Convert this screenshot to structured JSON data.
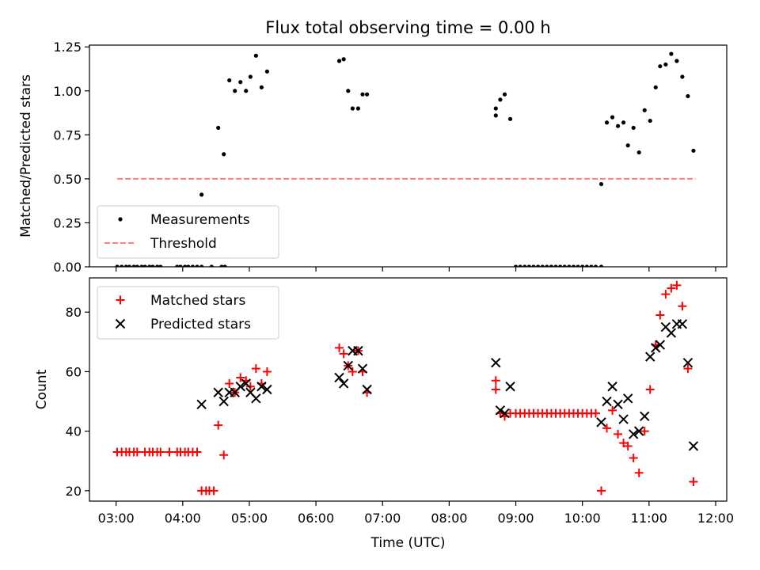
{
  "colors": {
    "measurement": "#000000",
    "threshold": "#ff7f7f",
    "matched": "#ff0000",
    "predicted": "#000000",
    "axes": "#000000",
    "legend_border": "#cccccc"
  },
  "chart_data": [
    {
      "type": "scatter",
      "title": "Flux total observing time = 0.00 h",
      "xlabel": "",
      "ylabel": "Matched/Predicted stars",
      "xlim": [
        "02:36",
        "12:10"
      ],
      "ylim": [
        0,
        1.26
      ],
      "yticks": [
        "0.00",
        "0.25",
        "0.50",
        "0.75",
        "1.00",
        "1.25"
      ],
      "ytick_values": [
        0,
        0.25,
        0.5,
        0.75,
        1.0,
        1.25
      ],
      "legend_position": "lower-left",
      "series": [
        {
          "name": "Measurements",
          "marker": "dot",
          "points": [
            [
              "03:01",
              0
            ],
            [
              "03:05",
              0
            ],
            [
              "03:09",
              0
            ],
            [
              "03:12",
              0
            ],
            [
              "03:16",
              0
            ],
            [
              "03:19",
              0
            ],
            [
              "03:23",
              0
            ],
            [
              "03:26",
              0
            ],
            [
              "03:30",
              0
            ],
            [
              "03:33",
              0
            ],
            [
              "03:37",
              0
            ],
            [
              "03:40",
              0
            ],
            [
              "03:55",
              0
            ],
            [
              "03:58",
              0
            ],
            [
              "04:02",
              0
            ],
            [
              "04:05",
              0
            ],
            [
              "04:09",
              0
            ],
            [
              "04:13",
              0
            ],
            [
              "04:17",
              0
            ],
            [
              "04:26",
              0
            ],
            [
              "04:35",
              0
            ],
            [
              "04:38",
              0
            ],
            [
              "04:17",
              0.41
            ],
            [
              "04:32",
              0.79
            ],
            [
              "04:37",
              0.64
            ],
            [
              "04:42",
              1.06
            ],
            [
              "04:47",
              1.0
            ],
            [
              "04:52",
              1.05
            ],
            [
              "04:57",
              1.0
            ],
            [
              "05:01",
              1.08
            ],
            [
              "05:06",
              1.2
            ],
            [
              "05:11",
              1.02
            ],
            [
              "05:16",
              1.11
            ],
            [
              "06:21",
              1.17
            ],
            [
              "06:25",
              1.18
            ],
            [
              "06:29",
              1.0
            ],
            [
              "06:33",
              0.9
            ],
            [
              "06:38",
              0.9
            ],
            [
              "06:42",
              0.98
            ],
            [
              "06:46",
              0.98
            ],
            [
              "08:42",
              0.9
            ],
            [
              "08:46",
              0.95
            ],
            [
              "08:50",
              0.98
            ],
            [
              "08:42",
              0.86
            ],
            [
              "08:55",
              0.84
            ],
            [
              "09:00",
              0
            ],
            [
              "09:04",
              0
            ],
            [
              "09:08",
              0
            ],
            [
              "09:12",
              0
            ],
            [
              "09:16",
              0
            ],
            [
              "09:20",
              0
            ],
            [
              "09:24",
              0
            ],
            [
              "09:28",
              0
            ],
            [
              "09:32",
              0
            ],
            [
              "09:36",
              0
            ],
            [
              "09:40",
              0
            ],
            [
              "09:44",
              0
            ],
            [
              "09:48",
              0
            ],
            [
              "09:52",
              0
            ],
            [
              "09:56",
              0
            ],
            [
              "10:00",
              0
            ],
            [
              "10:04",
              0
            ],
            [
              "10:08",
              0
            ],
            [
              "10:12",
              0
            ],
            [
              "10:17",
              0
            ],
            [
              "10:17",
              0.47
            ],
            [
              "10:22",
              0.82
            ],
            [
              "10:27",
              0.85
            ],
            [
              "10:32",
              0.8
            ],
            [
              "10:37",
              0.82
            ],
            [
              "10:41",
              0.69
            ],
            [
              "10:46",
              0.79
            ],
            [
              "10:51",
              0.65
            ],
            [
              "10:56",
              0.89
            ],
            [
              "11:01",
              0.83
            ],
            [
              "11:06",
              1.02
            ],
            [
              "11:10",
              1.14
            ],
            [
              "11:15",
              1.15
            ],
            [
              "11:20",
              1.21
            ],
            [
              "11:25",
              1.17
            ],
            [
              "11:30",
              1.08
            ],
            [
              "11:35",
              0.97
            ],
            [
              "11:40",
              0.66
            ]
          ]
        },
        {
          "name": "Threshold",
          "style": "dashed",
          "points": [
            [
              "03:01",
              0.5
            ],
            [
              "11:42",
              0.5
            ]
          ]
        }
      ]
    },
    {
      "type": "scatter",
      "title": "",
      "xlabel": "Time (UTC)",
      "ylabel": "Count",
      "xlim": [
        "02:36",
        "12:10"
      ],
      "ylim": [
        16.5,
        91.5
      ],
      "xticks": [
        "03:00",
        "04:00",
        "05:00",
        "06:00",
        "07:00",
        "08:00",
        "09:00",
        "10:00",
        "11:00",
        "12:00"
      ],
      "yticks": [
        "20",
        "40",
        "60",
        "80"
      ],
      "ytick_values": [
        20,
        40,
        60,
        80
      ],
      "legend_position": "upper-left",
      "series": [
        {
          "name": "Matched stars",
          "marker": "plus",
          "points": [
            [
              "03:01",
              33
            ],
            [
              "03:05",
              33
            ],
            [
              "03:09",
              33
            ],
            [
              "03:12",
              33
            ],
            [
              "03:16",
              33
            ],
            [
              "03:19",
              33
            ],
            [
              "03:26",
              33
            ],
            [
              "03:30",
              33
            ],
            [
              "03:33",
              33
            ],
            [
              "03:37",
              33
            ],
            [
              "03:40",
              33
            ],
            [
              "03:48",
              33
            ],
            [
              "03:55",
              33
            ],
            [
              "03:58",
              33
            ],
            [
              "04:02",
              33
            ],
            [
              "04:05",
              33
            ],
            [
              "04:09",
              33
            ],
            [
              "04:13",
              33
            ],
            [
              "04:17",
              20
            ],
            [
              "04:21",
              20
            ],
            [
              "04:24",
              20
            ],
            [
              "04:28",
              20
            ],
            [
              "04:32",
              42
            ],
            [
              "04:37",
              32
            ],
            [
              "04:42",
              56
            ],
            [
              "04:47",
              53
            ],
            [
              "04:52",
              58
            ],
            [
              "04:57",
              57
            ],
            [
              "05:01",
              55
            ],
            [
              "05:06",
              61
            ],
            [
              "05:11",
              56
            ],
            [
              "05:16",
              60
            ],
            [
              "06:21",
              68
            ],
            [
              "06:25",
              66
            ],
            [
              "06:29",
              62
            ],
            [
              "06:33",
              60
            ],
            [
              "06:38",
              67
            ],
            [
              "06:42",
              60
            ],
            [
              "06:46",
              53
            ],
            [
              "08:42",
              57
            ],
            [
              "08:42",
              54
            ],
            [
              "08:46",
              46
            ],
            [
              "08:50",
              45
            ],
            [
              "08:55",
              46
            ],
            [
              "09:00",
              46
            ],
            [
              "09:04",
              46
            ],
            [
              "09:08",
              46
            ],
            [
              "09:12",
              46
            ],
            [
              "09:16",
              46
            ],
            [
              "09:20",
              46
            ],
            [
              "09:24",
              46
            ],
            [
              "09:28",
              46
            ],
            [
              "09:32",
              46
            ],
            [
              "09:36",
              46
            ],
            [
              "09:40",
              46
            ],
            [
              "09:44",
              46
            ],
            [
              "09:48",
              46
            ],
            [
              "09:52",
              46
            ],
            [
              "09:56",
              46
            ],
            [
              "10:00",
              46
            ],
            [
              "10:04",
              46
            ],
            [
              "10:08",
              46
            ],
            [
              "10:12",
              46
            ],
            [
              "10:17",
              20
            ],
            [
              "10:22",
              41
            ],
            [
              "10:27",
              47
            ],
            [
              "10:32",
              39
            ],
            [
              "10:37",
              36
            ],
            [
              "10:41",
              35
            ],
            [
              "10:46",
              31
            ],
            [
              "10:51",
              26
            ],
            [
              "10:56",
              40
            ],
            [
              "11:01",
              54
            ],
            [
              "11:06",
              69
            ],
            [
              "11:10",
              79
            ],
            [
              "11:15",
              86
            ],
            [
              "11:20",
              88
            ],
            [
              "11:25",
              89
            ],
            [
              "11:30",
              82
            ],
            [
              "11:35",
              61
            ],
            [
              "11:40",
              23
            ]
          ]
        },
        {
          "name": "Predicted stars",
          "marker": "x",
          "points": [
            [
              "04:17",
              49
            ],
            [
              "04:32",
              53
            ],
            [
              "04:37",
              50
            ],
            [
              "04:42",
              53
            ],
            [
              "04:47",
              53
            ],
            [
              "04:52",
              55
            ],
            [
              "04:57",
              56
            ],
            [
              "05:01",
              53
            ],
            [
              "05:06",
              51
            ],
            [
              "05:11",
              55
            ],
            [
              "05:16",
              54
            ],
            [
              "06:21",
              58
            ],
            [
              "06:25",
              56
            ],
            [
              "06:29",
              62
            ],
            [
              "06:33",
              67
            ],
            [
              "06:38",
              67
            ],
            [
              "06:42",
              61
            ],
            [
              "06:46",
              54
            ],
            [
              "08:42",
              63
            ],
            [
              "08:46",
              47
            ],
            [
              "08:50",
              46
            ],
            [
              "08:55",
              55
            ],
            [
              "10:17",
              43
            ],
            [
              "10:22",
              50
            ],
            [
              "10:27",
              55
            ],
            [
              "10:32",
              49
            ],
            [
              "10:37",
              44
            ],
            [
              "10:41",
              51
            ],
            [
              "10:46",
              39
            ],
            [
              "10:51",
              40
            ],
            [
              "10:56",
              45
            ],
            [
              "11:01",
              65
            ],
            [
              "11:06",
              68
            ],
            [
              "11:10",
              69
            ],
            [
              "11:15",
              75
            ],
            [
              "11:20",
              73
            ],
            [
              "11:25",
              76
            ],
            [
              "11:30",
              76
            ],
            [
              "11:35",
              63
            ],
            [
              "11:40",
              35
            ]
          ]
        }
      ]
    }
  ]
}
